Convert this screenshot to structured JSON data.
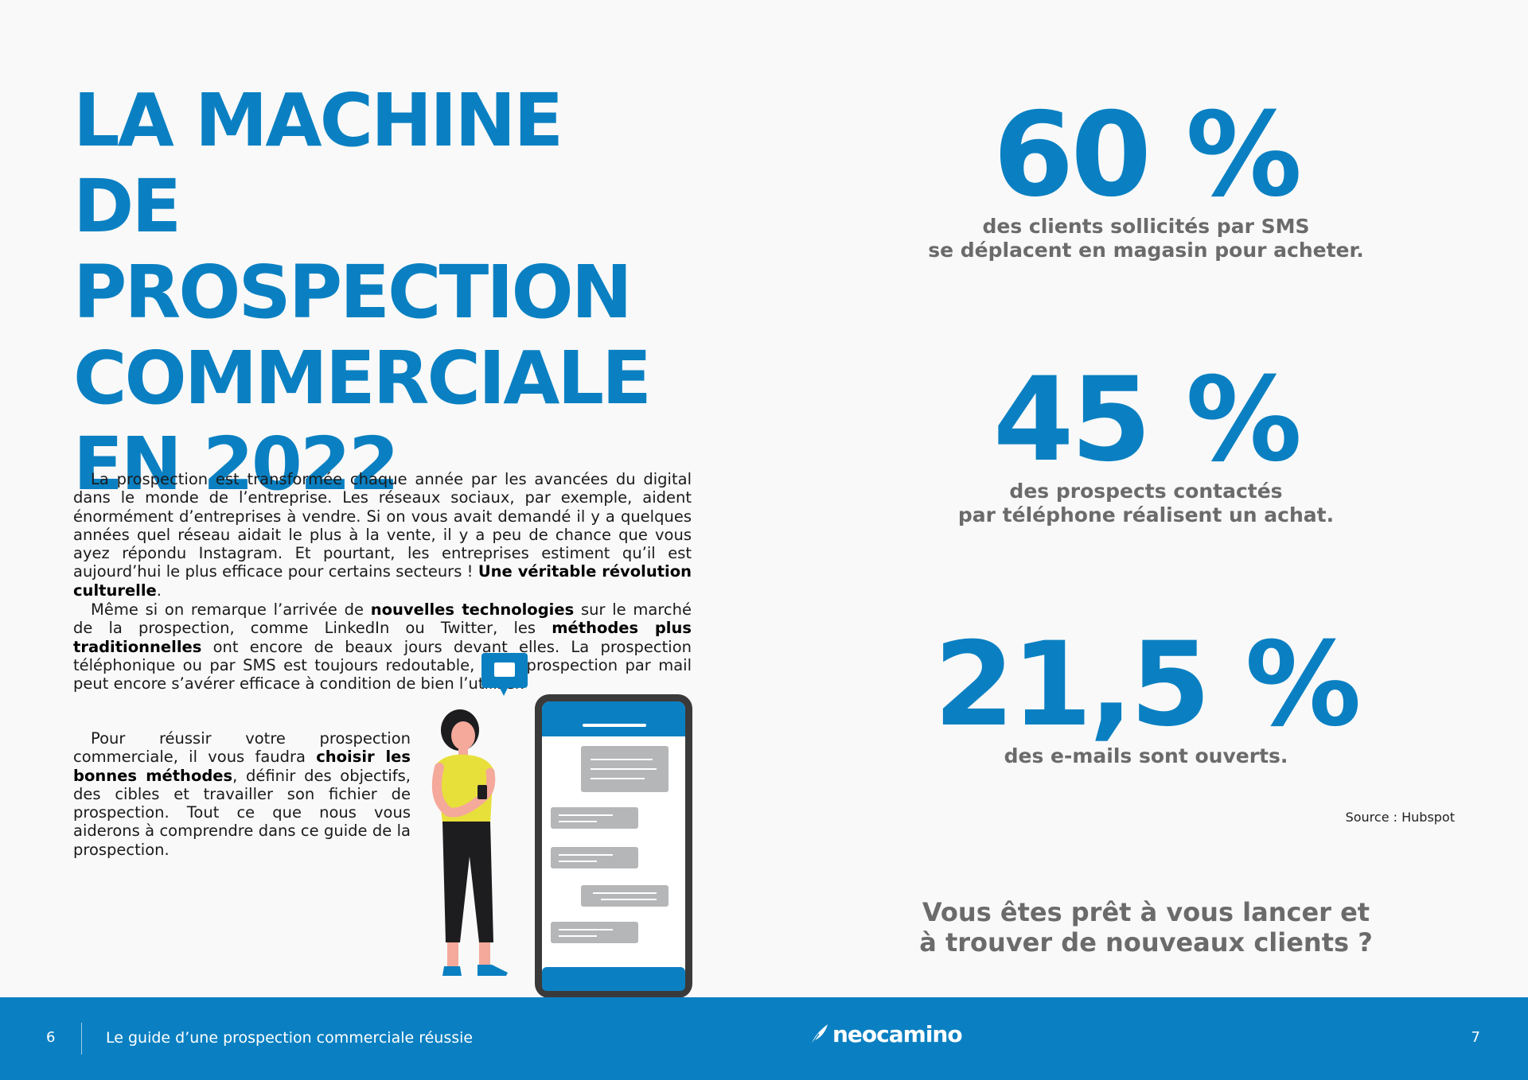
{
  "title_lines": [
    "LA MACHINE DE",
    "PROSPECTION",
    "COMMERCIALE",
    "EN 2022"
  ],
  "intro": {
    "p1_text": "La prospection est transformée chaque année par les avancées du digital dans le monde de l’entreprise. Les réseaux sociaux, par exemple, aident énormément d’entreprises à vendre. Si on vous avait demandé il y a quelques années quel réseau aidait le plus à la vente, il y a peu de chance que vous ayez répondu Instagram. Et pourtant, les entreprises estiment qu’il est aujourd’hui le plus efficace pour certains secteurs ! ",
    "p1_bold": "Une véritable révolution culturelle",
    "p1_end": ".",
    "p2_a": "Même si on remarque l’arrivée de ",
    "p2_bold1": "nouvelles technologies",
    "p2_b": " sur le marché de la prospection, comme LinkedIn ou Twitter, les ",
    "p2_bold2": "méthodes plus traditionnelles",
    "p2_c": " ont encore de beaux jours devant elles. La prospection téléphonique ou par SMS est toujours redoutable, et la prospection par mail peut encore s’avérer efficace à condition de bien l’utiliser.",
    "p3_a": "Pour réussir votre prospection commerciale, il vous faudra ",
    "p3_bold": "choisir les bonnes méthodes",
    "p3_b": ", définir des objectifs, des cibles et travailler son fichier de prospection. Tout ce que nous vous aiderons à comprendre dans ce guide de la prospection."
  },
  "stats": [
    {
      "value": "60 %",
      "line1": "des clients sollicités par SMS",
      "line2": "se déplacent en magasin pour acheter."
    },
    {
      "value": "45 %",
      "line1": "des prospects contactés",
      "line2": "par téléphone réalisent un achat."
    },
    {
      "value": "21,5 %",
      "line1": "des e-mails sont ouverts.",
      "line2": ""
    }
  ],
  "source": "Source : Hubspot",
  "cta_lines": [
    "Vous êtes prêt à vous lancer et",
    "à trouver de nouveaux clients ?"
  ],
  "footer": {
    "page_left": "6",
    "guide_title": "Le guide d’une prospection commerciale réussie",
    "brand": "neocamino",
    "page_right": "7"
  },
  "colors": {
    "primary": "#0a80c2",
    "grey_text": "#6b6b6b",
    "background": "#f9f9f9"
  }
}
